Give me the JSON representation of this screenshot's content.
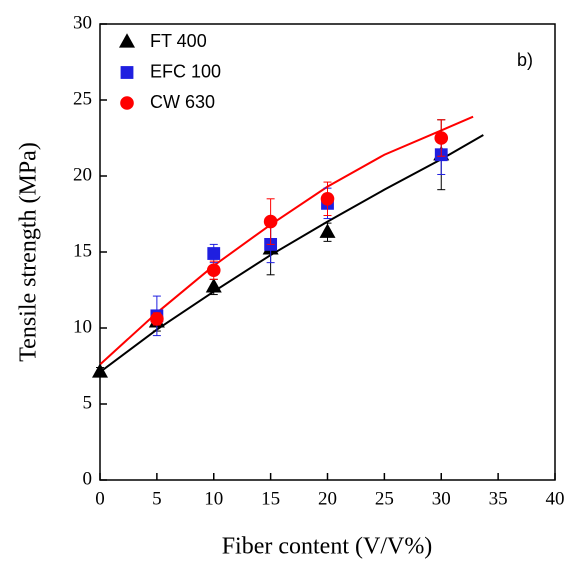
{
  "chart_data": {
    "type": "scatter",
    "xlabel": "Fiber content (V/V%)",
    "ylabel": "Tensile strength (MPa)",
    "annotation": "b)",
    "xlim": [
      0,
      40
    ],
    "xticks": [
      0,
      5,
      10,
      15,
      20,
      25,
      30,
      35,
      40
    ],
    "ylim": [
      0,
      30
    ],
    "yticks": [
      0,
      5,
      10,
      15,
      20,
      25,
      30
    ],
    "legend": "upper left",
    "series": [
      {
        "name": "FT 400",
        "color": "#000000",
        "marker": "triangle",
        "x": [
          0,
          5,
          10,
          15,
          20,
          30
        ],
        "values": [
          7.1,
          10.4,
          12.7,
          15.2,
          16.3,
          21.4
        ],
        "errors": [
          0.3,
          0.6,
          0.5,
          1.7,
          0.6,
          2.3
        ]
      },
      {
        "name": "EFC 100",
        "color": "#1f1fe0",
        "marker": "square",
        "x": [
          5,
          10,
          15,
          20,
          30
        ],
        "values": [
          10.8,
          14.9,
          15.5,
          18.2,
          21.4
        ],
        "errors": [
          1.3,
          0.6,
          1.2,
          1.0,
          1.3
        ]
      },
      {
        "name": "CW 630",
        "color": "#ff0000",
        "marker": "circle",
        "x": [
          5,
          10,
          15,
          20,
          30
        ],
        "values": [
          10.6,
          13.8,
          17.0,
          18.5,
          22.5
        ],
        "errors": [
          0.4,
          0.6,
          1.5,
          1.1,
          1.2
        ]
      }
    ],
    "fits": [
      {
        "color": "#000000",
        "x": [
          0,
          5,
          10,
          15,
          20,
          25,
          30,
          33.7
        ],
        "values": [
          7.1,
          9.9,
          12.4,
          14.8,
          17.0,
          19.1,
          21.1,
          22.7
        ]
      },
      {
        "color": "#ff0000",
        "x": [
          0,
          5,
          10,
          15,
          20,
          25,
          30,
          32.8
        ],
        "values": [
          7.6,
          11.0,
          14.1,
          16.8,
          19.3,
          21.4,
          23.0,
          23.9
        ]
      }
    ]
  }
}
